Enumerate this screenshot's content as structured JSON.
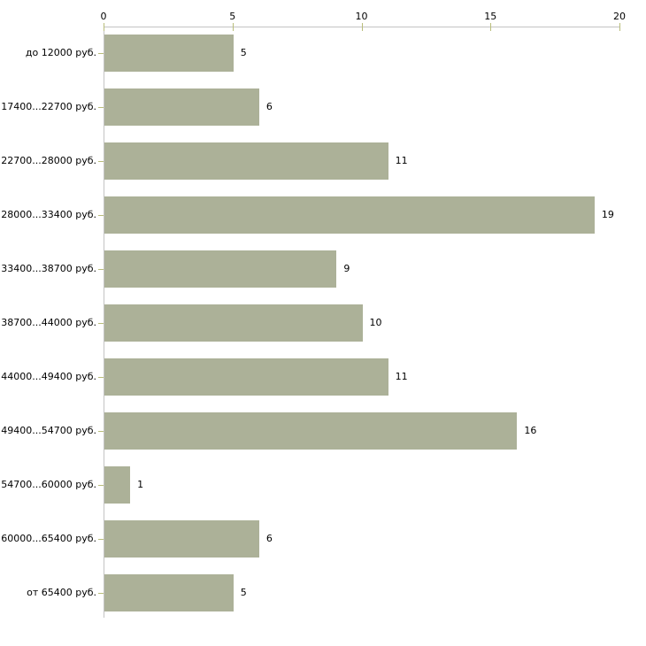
{
  "chart_data": {
    "type": "bar",
    "orientation": "horizontal",
    "title": "",
    "xlabel": "",
    "ylabel": "",
    "categories": [
      "до 12000 руб.",
      "17400...22700 руб.",
      "22700...28000 руб.",
      "28000...33400 руб.",
      "33400...38700 руб.",
      "38700...44000 руб.",
      "44000...49400 руб.",
      "49400...54700 руб.",
      "54700...60000 руб.",
      "60000...65400 руб.",
      "от 65400 руб."
    ],
    "values": [
      5,
      6,
      11,
      19,
      9,
      10,
      11,
      16,
      1,
      6,
      5
    ],
    "xlim": [
      0,
      20
    ],
    "x_ticks": [
      0,
      5,
      10,
      15,
      20
    ],
    "x_tick_labels": [
      "0",
      "5",
      "10",
      "15",
      "20"
    ],
    "value_labels_shown": true,
    "grid": false,
    "legend": null,
    "bar_color": "#acb198",
    "axis_color": "#c3c3c3",
    "tick_color": "#b9bd7a",
    "text_color": "#000000",
    "background_color": "#ffffff"
  }
}
